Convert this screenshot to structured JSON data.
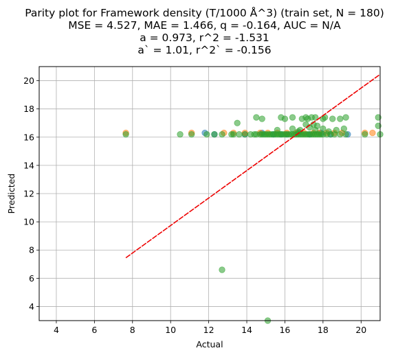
{
  "chart_data": {
    "type": "scatter",
    "title_lines": [
      "Parity plot for Framework density (T/1000 Å^3) (train set, N = 180)",
      "MSE = 4.527, MAE = 1.466, q = -0.164, AUC = N/A",
      "a = 0.973, r^2 = -1.531",
      "a` = 1.01, r^2` = -0.156"
    ],
    "xlabel": "Actual",
    "ylabel": "Predicted",
    "xlim": [
      3.1,
      21.0
    ],
    "ylim": [
      3.0,
      21.0
    ],
    "xticks": [
      4,
      6,
      8,
      10,
      12,
      14,
      16,
      18,
      20
    ],
    "yticks": [
      4,
      6,
      8,
      10,
      12,
      14,
      16,
      18,
      20
    ],
    "grid": true,
    "fit_line": {
      "color": "#ee0000",
      "x": [
        7.65,
        21.0
      ],
      "y": [
        7.45,
        20.45
      ]
    },
    "series": [
      {
        "color": "#1f77b4",
        "points": [
          [
            11.8,
            16.3
          ],
          [
            13.9,
            16.2
          ],
          [
            15.4,
            16.2
          ],
          [
            16.1,
            16.2
          ],
          [
            16.7,
            16.3
          ],
          [
            17.3,
            16.2
          ],
          [
            17.9,
            16.3
          ],
          [
            18.4,
            16.2
          ],
          [
            19.3,
            16.2
          ],
          [
            12.3,
            16.2
          ],
          [
            14.8,
            16.3
          ],
          [
            15.8,
            16.2
          ]
        ]
      },
      {
        "color": "#ff7f0e",
        "points": [
          [
            7.65,
            16.3
          ],
          [
            11.1,
            16.3
          ],
          [
            12.8,
            16.3
          ],
          [
            13.3,
            16.3
          ],
          [
            13.9,
            16.3
          ],
          [
            14.7,
            16.3
          ],
          [
            15.1,
            16.3
          ],
          [
            15.6,
            16.3
          ],
          [
            16.1,
            16.3
          ],
          [
            16.6,
            16.3
          ],
          [
            17.0,
            16.3
          ],
          [
            17.5,
            16.3
          ],
          [
            18.2,
            16.3
          ],
          [
            18.6,
            16.3
          ],
          [
            20.2,
            16.3
          ],
          [
            20.6,
            16.3
          ],
          [
            19.0,
            16.3
          ],
          [
            17.8,
            16.3
          ]
        ]
      },
      {
        "color": "#2ca02c",
        "points": [
          [
            7.65,
            16.2
          ],
          [
            10.5,
            16.2
          ],
          [
            11.1,
            16.2
          ],
          [
            11.9,
            16.2
          ],
          [
            12.3,
            16.2
          ],
          [
            12.7,
            16.2
          ],
          [
            13.2,
            16.2
          ],
          [
            13.3,
            16.2
          ],
          [
            13.6,
            16.2
          ],
          [
            13.9,
            16.2
          ],
          [
            14.2,
            16.2
          ],
          [
            14.4,
            16.2
          ],
          [
            14.5,
            16.2
          ],
          [
            14.7,
            16.2
          ],
          [
            14.8,
            16.2
          ],
          [
            14.9,
            16.2
          ],
          [
            15.0,
            16.2
          ],
          [
            15.1,
            16.2
          ],
          [
            15.2,
            16.2
          ],
          [
            15.3,
            16.2
          ],
          [
            15.4,
            16.2
          ],
          [
            15.5,
            16.2
          ],
          [
            15.6,
            16.2
          ],
          [
            15.7,
            16.2
          ],
          [
            15.8,
            16.2
          ],
          [
            15.9,
            16.2
          ],
          [
            16.0,
            16.2
          ],
          [
            16.1,
            16.2
          ],
          [
            16.2,
            16.2
          ],
          [
            16.3,
            16.2
          ],
          [
            16.4,
            16.2
          ],
          [
            16.5,
            16.2
          ],
          [
            16.6,
            16.2
          ],
          [
            16.7,
            16.2
          ],
          [
            16.8,
            16.2
          ],
          [
            16.9,
            16.2
          ],
          [
            17.0,
            16.2
          ],
          [
            17.1,
            16.2
          ],
          [
            17.2,
            16.2
          ],
          [
            17.3,
            16.2
          ],
          [
            17.4,
            16.2
          ],
          [
            17.5,
            16.2
          ],
          [
            17.6,
            16.2
          ],
          [
            17.7,
            16.2
          ],
          [
            17.8,
            16.2
          ],
          [
            17.9,
            16.2
          ],
          [
            18.0,
            16.2
          ],
          [
            18.2,
            16.2
          ],
          [
            18.4,
            16.2
          ],
          [
            18.6,
            16.2
          ],
          [
            18.9,
            16.2
          ],
          [
            19.2,
            16.2
          ],
          [
            20.2,
            16.2
          ],
          [
            21.0,
            16.2
          ],
          [
            13.5,
            17.0
          ],
          [
            14.5,
            17.4
          ],
          [
            14.8,
            17.3
          ],
          [
            15.8,
            17.4
          ],
          [
            16.0,
            17.3
          ],
          [
            16.4,
            17.4
          ],
          [
            16.9,
            17.3
          ],
          [
            17.1,
            17.4
          ],
          [
            17.2,
            17.3
          ],
          [
            17.4,
            17.4
          ],
          [
            17.6,
            17.4
          ],
          [
            18.0,
            17.3
          ],
          [
            18.1,
            17.4
          ],
          [
            18.5,
            17.3
          ],
          [
            18.9,
            17.3
          ],
          [
            19.2,
            17.4
          ],
          [
            20.9,
            17.4
          ],
          [
            15.6,
            16.5
          ],
          [
            16.4,
            16.6
          ],
          [
            16.8,
            16.5
          ],
          [
            17.3,
            16.7
          ],
          [
            17.5,
            16.9
          ],
          [
            17.7,
            16.8
          ],
          [
            17.6,
            16.5
          ],
          [
            18.0,
            16.6
          ],
          [
            18.7,
            16.5
          ],
          [
            19.1,
            16.6
          ],
          [
            17.1,
            16.9
          ],
          [
            16.7,
            16.4
          ],
          [
            18.3,
            16.4
          ],
          [
            20.9,
            16.8
          ],
          [
            12.7,
            6.6
          ],
          [
            15.1,
            3.0
          ]
        ]
      }
    ]
  }
}
